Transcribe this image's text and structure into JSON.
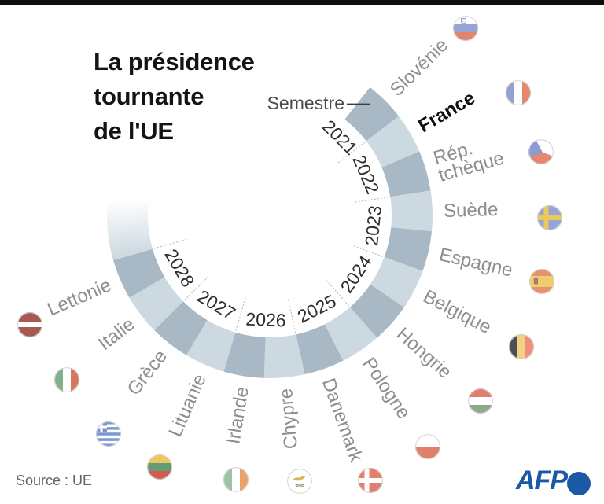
{
  "title": {
    "lines": [
      "La présidence",
      "tournante",
      "de l'UE"
    ]
  },
  "pointer_label": "Semestre",
  "source_text": "Source : UE",
  "afp_logo": {
    "text": "AFP",
    "color": "#1b58a5"
  },
  "chart_data": {
    "type": "radial-semester-ring",
    "title": "La présidence tournante de l'UE",
    "axis_label": "Semestre",
    "years": [
      "2021",
      "2022",
      "2023",
      "2024",
      "2025",
      "2026",
      "2027",
      "2028"
    ],
    "segments": [
      {
        "country": "Slovénie",
        "flag": "slovenie",
        "year": "2021",
        "semester": 2,
        "highlight": false
      },
      {
        "country": "France",
        "flag": "france",
        "year": "2022",
        "semester": 1,
        "highlight": true
      },
      {
        "country": "Rép. tchèque",
        "label_lines": [
          "Rép.",
          "tchèque"
        ],
        "flag": "rep-tcheque",
        "year": "2022",
        "semester": 2,
        "highlight": false
      },
      {
        "country": "Suède",
        "flag": "suede",
        "year": "2023",
        "semester": 1,
        "highlight": false
      },
      {
        "country": "Espagne",
        "flag": "espagne",
        "year": "2023",
        "semester": 2,
        "highlight": false
      },
      {
        "country": "Belgique",
        "flag": "belgique",
        "year": "2024",
        "semester": 1,
        "highlight": false
      },
      {
        "country": "Hongrie",
        "flag": "hongrie",
        "year": "2024",
        "semester": 2,
        "highlight": false
      },
      {
        "country": "Pologne",
        "flag": "pologne",
        "year": "2025",
        "semester": 1,
        "highlight": false
      },
      {
        "country": "Danemark",
        "flag": "danemark",
        "year": "2025",
        "semester": 2,
        "highlight": false
      },
      {
        "country": "Chypre",
        "flag": "chypre",
        "year": "2026",
        "semester": 1,
        "highlight": false
      },
      {
        "country": "Irlande",
        "flag": "irlande",
        "year": "2026",
        "semester": 2,
        "highlight": false
      },
      {
        "country": "Lituanie",
        "flag": "lituanie",
        "year": "2027",
        "semester": 1,
        "highlight": false
      },
      {
        "country": "Grèce",
        "flag": "grece",
        "year": "2027",
        "semester": 2,
        "highlight": false
      },
      {
        "country": "Italie",
        "flag": "italie",
        "year": "2028",
        "semester": 1,
        "highlight": false
      },
      {
        "country": "Lettonie",
        "flag": "lettonie",
        "year": "2028",
        "semester": 2,
        "highlight": false
      }
    ],
    "colors": {
      "segment_dark": "#a8b9c5",
      "segment_light": "#cdd9e0",
      "country_label": "#8e8e8e",
      "highlight_label": "#0f0f0f",
      "year_label": "#2d2d2d",
      "dotted_line": "#c2c2c2",
      "pointer_line": "#3d3d3d"
    }
  },
  "flags": {
    "slovenie": {
      "type": "tricolor-h",
      "colors": [
        "#ffffff",
        "#96a5d3",
        "#e2836e"
      ],
      "emblem": "shield",
      "emblem_colors": [
        "#eef1f7",
        "#8f9cc9"
      ]
    },
    "france": {
      "type": "tricolor-v",
      "colors": [
        "#94a0d2",
        "#ffffff",
        "#e6866f"
      ]
    },
    "rep-tcheque": {
      "type": "czech",
      "colors": [
        "#ffffff",
        "#e6866f",
        "#8c9cd0"
      ],
      "tilt": 20
    },
    "suede": {
      "type": "nordic-cross",
      "colors": [
        "#95a6d4",
        "#ecc960"
      ]
    },
    "espagne": {
      "type": "spain",
      "colors": [
        "#e6926f",
        "#f0cc70"
      ],
      "emblem_colors": [
        "#b08468",
        "#8d6b5e"
      ]
    },
    "belgique": {
      "type": "tricolor-v",
      "colors": [
        "#4f4f52",
        "#f2d182",
        "#ef8e7d"
      ]
    },
    "hongrie": {
      "type": "tricolor-h",
      "colors": [
        "#e0806c",
        "#ffffff",
        "#8fa98c"
      ]
    },
    "pologne": {
      "type": "bicolor-h",
      "colors": [
        "#ffffff",
        "#e0806c"
      ]
    },
    "danemark": {
      "type": "nordic-cross",
      "colors": [
        "#e0806c",
        "#ffffff"
      ]
    },
    "chypre": {
      "type": "cyprus",
      "colors": [
        "#ffffff",
        "#d8b35a",
        "#7f9e6e"
      ]
    },
    "irlande": {
      "type": "tricolor-v",
      "colors": [
        "#9cc3a8",
        "#ffffff",
        "#eba269"
      ]
    },
    "lituanie": {
      "type": "tricolor-h",
      "colors": [
        "#eec763",
        "#679a76",
        "#cc5f4e"
      ]
    },
    "grece": {
      "type": "greece",
      "colors": [
        "#7d98cd",
        "#ffffff"
      ]
    },
    "italie": {
      "type": "tricolor-v",
      "colors": [
        "#82b08e",
        "#ffffff",
        "#d87663"
      ]
    },
    "lettonie": {
      "type": "latvia",
      "colors": [
        "#a85a50",
        "#ffffff"
      ]
    }
  }
}
